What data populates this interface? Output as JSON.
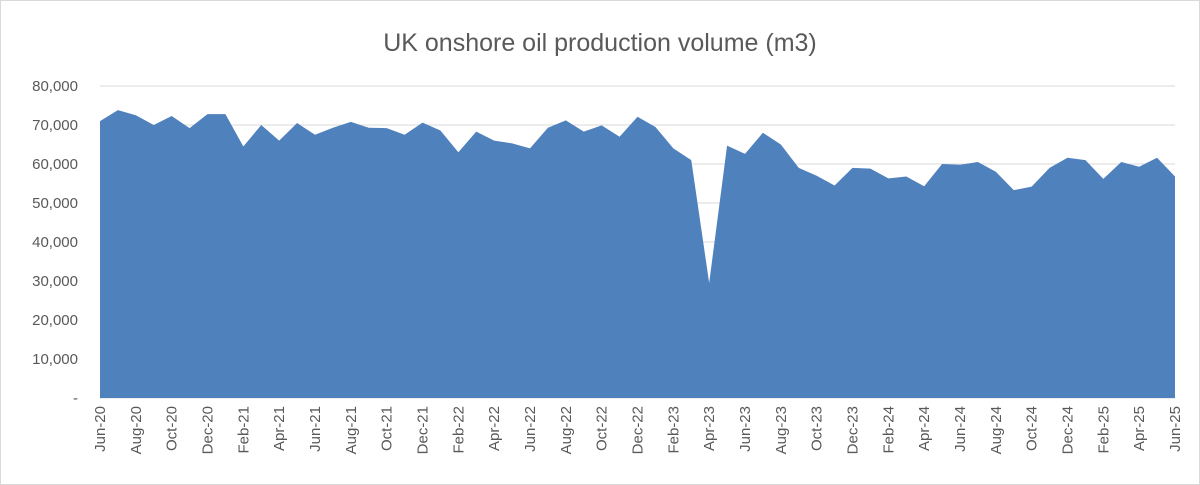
{
  "chart_data": {
    "type": "area",
    "title": "UK onshore oil production volume (m3)",
    "xlabel": "",
    "ylabel": "",
    "ylim": [
      0,
      80000
    ],
    "y_ticks": [
      0,
      10000,
      20000,
      30000,
      40000,
      50000,
      60000,
      70000,
      80000
    ],
    "y_tick_labels": [
      "-",
      "10,000",
      "20,000",
      "30,000",
      "40,000",
      "50,000",
      "60,000",
      "70,000",
      "80,000"
    ],
    "grid": true,
    "legend": "none",
    "color": "#4f81bd",
    "x": [
      "Jun-20",
      "Jul-20",
      "Aug-20",
      "Sep-20",
      "Oct-20",
      "Nov-20",
      "Dec-20",
      "Jan-21",
      "Feb-21",
      "Mar-21",
      "Apr-21",
      "May-21",
      "Jun-21",
      "Jul-21",
      "Aug-21",
      "Sep-21",
      "Oct-21",
      "Nov-21",
      "Dec-21",
      "Jan-22",
      "Feb-22",
      "Mar-22",
      "Apr-22",
      "May-22",
      "Jun-22",
      "Jul-22",
      "Aug-22",
      "Sep-22",
      "Oct-22",
      "Nov-22",
      "Dec-22",
      "Jan-23",
      "Feb-23",
      "Mar-23",
      "Apr-23",
      "May-23",
      "Jun-23",
      "Jul-23",
      "Aug-23",
      "Sep-23",
      "Oct-23",
      "Nov-23",
      "Dec-23",
      "Jan-24",
      "Feb-24",
      "Mar-24",
      "Apr-24",
      "May-24",
      "Jun-24",
      "Jul-24",
      "Aug-24",
      "Sep-24",
      "Oct-24",
      "Nov-24",
      "Dec-24",
      "Jan-25",
      "Feb-25",
      "Mar-25",
      "Apr-25",
      "May-25",
      "Jun-25"
    ],
    "x_tick_labels": [
      "Jun-20",
      "Aug-20",
      "Oct-20",
      "Dec-20",
      "Feb-21",
      "Apr-21",
      "Jun-21",
      "Aug-21",
      "Oct-21",
      "Dec-21",
      "Feb-22",
      "Apr-22",
      "Jun-22",
      "Aug-22",
      "Oct-22",
      "Dec-22",
      "Feb-23",
      "Apr-23",
      "Jun-23",
      "Aug-23",
      "Oct-23",
      "Dec-23",
      "Feb-24",
      "Apr-24",
      "Jun-24",
      "Aug-24",
      "Oct-24",
      "Dec-24",
      "Feb-25",
      "Apr-25",
      "Jun-25"
    ],
    "values": [
      71000,
      73800,
      72500,
      70000,
      72300,
      69200,
      72800,
      72800,
      64500,
      70000,
      66000,
      70500,
      67500,
      69300,
      70800,
      69300,
      69200,
      67500,
      70600,
      68600,
      63000,
      68300,
      66000,
      65300,
      64000,
      69300,
      71200,
      68300,
      69900,
      67000,
      72100,
      69500,
      64000,
      61000,
      29500,
      64700,
      62600,
      68000,
      65000,
      59000,
      57000,
      54500,
      59000,
      58800,
      56300,
      56800,
      54300,
      60000,
      59800,
      60500,
      58000,
      53300,
      54200,
      59000,
      61600,
      61000,
      56200,
      60500,
      59300,
      61600,
      56800
    ]
  }
}
